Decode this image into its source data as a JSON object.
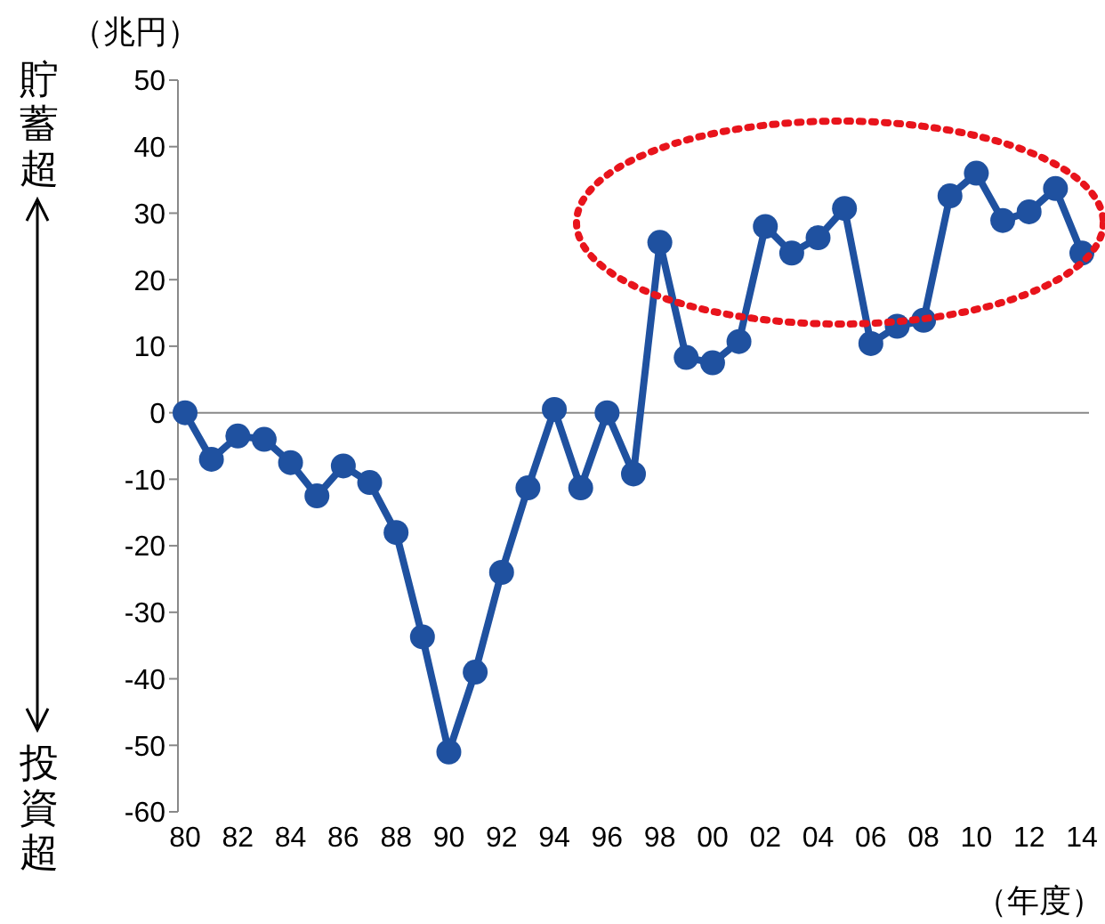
{
  "chart_data": {
    "type": "line",
    "categories": [
      "80",
      null,
      "82",
      null,
      "84",
      null,
      "86",
      null,
      "88",
      null,
      "90",
      null,
      "92",
      null,
      "94",
      null,
      "96",
      null,
      "98",
      null,
      "00",
      null,
      "02",
      null,
      "04",
      null,
      "06",
      null,
      "08",
      null,
      "10",
      null,
      "12",
      null,
      "14"
    ],
    "series": [
      {
        "color": "#1f51a0",
        "values": [
          0,
          -7,
          -3.5,
          -4,
          -7.5,
          -12.5,
          -8,
          -10.5,
          -18,
          -33.7,
          -51,
          -39,
          -24,
          -11.3,
          0.5,
          -11.3,
          0,
          -9.2,
          25.6,
          8.3,
          7.5,
          10.7,
          28,
          24,
          26.3,
          30.7,
          10.4,
          13,
          13.9,
          32.6,
          36,
          28.9,
          30.2,
          33.7,
          24
        ]
      }
    ],
    "ylim": [
      -60,
      50
    ],
    "yticks": [
      -60,
      -50,
      -40,
      -30,
      -20,
      -10,
      0,
      10,
      20,
      30,
      40,
      50
    ],
    "ylabel": "（兆円）",
    "xlabel": "（年度）",
    "annotations": [
      "貯蓄超",
      "投資超"
    ],
    "ref_lines": [
      {
        "axis": "y",
        "value": 0,
        "color": "#888888"
      }
    ],
    "grid": false,
    "legend": false,
    "marker": "circle",
    "line_style": "solid"
  }
}
